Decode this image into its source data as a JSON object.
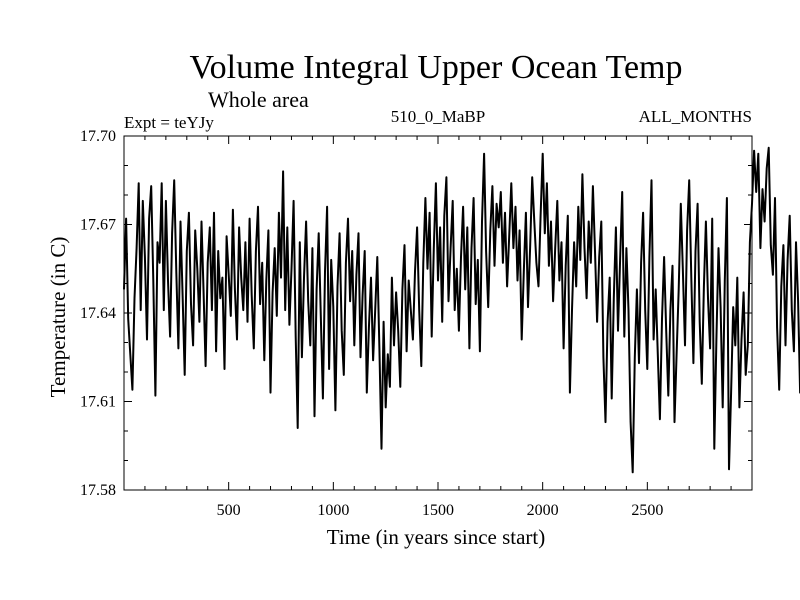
{
  "chart_data": {
    "type": "line",
    "title": "Volume Integral Upper Ocean Temp",
    "subtitle": "Whole area",
    "expt_label": "Expt = teYJy",
    "period_label": "510_0_MaBP",
    "months_label": "ALL_MONTHS",
    "xlabel": "Time (in years since start)",
    "ylabel": "Temperature (in C)",
    "xlim": [
      0,
      3000
    ],
    "ylim": [
      17.58,
      17.7
    ],
    "xticks": [
      500,
      1000,
      1500,
      2000,
      2500
    ],
    "xtick_labels": [
      "500",
      "1000",
      "1500",
      "2000",
      "2500"
    ],
    "yticks": [
      17.58,
      17.61,
      17.64,
      17.67,
      17.7
    ],
    "ytick_labels": [
      "17.58",
      "17.61",
      "17.64",
      "17.67",
      "17.70"
    ],
    "series": [
      {
        "name": "Volume integral upper ocean temperature",
        "color": "#000000",
        "x_start": 0,
        "x_step": 10,
        "values": [
          17.648,
          17.672,
          17.638,
          17.626,
          17.614,
          17.645,
          17.662,
          17.684,
          17.641,
          17.678,
          17.659,
          17.631,
          17.672,
          17.683,
          17.651,
          17.612,
          17.664,
          17.657,
          17.684,
          17.641,
          17.678,
          17.651,
          17.632,
          17.667,
          17.685,
          17.654,
          17.628,
          17.671,
          17.646,
          17.619,
          17.661,
          17.674,
          17.643,
          17.629,
          17.668,
          17.655,
          17.637,
          17.671,
          17.648,
          17.622,
          17.657,
          17.669,
          17.641,
          17.674,
          17.627,
          17.661,
          17.645,
          17.652,
          17.621,
          17.666,
          17.653,
          17.639,
          17.675,
          17.648,
          17.631,
          17.669,
          17.652,
          17.641,
          17.664,
          17.637,
          17.672,
          17.646,
          17.628,
          17.661,
          17.676,
          17.643,
          17.657,
          17.624,
          17.651,
          17.668,
          17.613,
          17.647,
          17.662,
          17.639,
          17.674,
          17.652,
          17.688,
          17.641,
          17.669,
          17.636,
          17.655,
          17.678,
          17.632,
          17.601,
          17.664,
          17.625,
          17.652,
          17.671,
          17.644,
          17.629,
          17.662,
          17.605,
          17.648,
          17.667,
          17.639,
          17.611,
          17.654,
          17.676,
          17.621,
          17.658,
          17.642,
          17.607,
          17.649,
          17.667,
          17.634,
          17.619,
          17.657,
          17.672,
          17.644,
          17.661,
          17.629,
          17.653,
          17.667,
          17.625,
          17.646,
          17.661,
          17.613,
          17.635,
          17.652,
          17.624,
          17.641,
          17.659,
          17.628,
          17.594,
          17.637,
          17.608,
          17.626,
          17.615,
          17.652,
          17.629,
          17.647,
          17.634,
          17.615,
          17.648,
          17.663,
          17.627,
          17.651,
          17.641,
          17.631,
          17.654,
          17.669,
          17.641,
          17.622,
          17.657,
          17.679,
          17.655,
          17.674,
          17.632,
          17.662,
          17.684,
          17.651,
          17.669,
          17.637,
          17.673,
          17.686,
          17.644,
          17.662,
          17.678,
          17.641,
          17.655,
          17.634,
          17.659,
          17.676,
          17.648,
          17.669,
          17.628,
          17.662,
          17.679,
          17.643,
          17.658,
          17.627,
          17.671,
          17.694,
          17.661,
          17.642,
          17.668,
          17.683,
          17.656,
          17.677,
          17.669,
          17.681,
          17.657,
          17.674,
          17.649,
          17.666,
          17.684,
          17.662,
          17.676,
          17.651,
          17.668,
          17.631,
          17.654,
          17.674,
          17.642,
          17.662,
          17.686,
          17.671,
          17.657,
          17.649,
          17.673,
          17.694,
          17.667,
          17.684,
          17.656,
          17.671,
          17.644,
          17.662,
          17.678,
          17.651,
          17.664,
          17.628,
          17.656,
          17.673,
          17.613,
          17.641,
          17.664,
          17.649,
          17.676,
          17.658,
          17.687,
          17.662,
          17.645,
          17.671,
          17.657,
          17.683,
          17.661,
          17.637,
          17.659,
          17.671,
          17.625,
          17.603,
          17.637,
          17.652,
          17.611,
          17.645,
          17.669,
          17.634,
          17.658,
          17.681,
          17.632,
          17.662,
          17.641,
          17.603,
          17.586,
          17.625,
          17.648,
          17.623,
          17.657,
          17.674,
          17.641,
          17.621,
          17.659,
          17.685,
          17.631,
          17.648,
          17.626,
          17.604,
          17.638,
          17.659,
          17.634,
          17.612,
          17.641,
          17.656,
          17.603,
          17.626,
          17.648,
          17.677,
          17.654,
          17.629,
          17.668,
          17.685,
          17.652,
          17.623,
          17.661,
          17.677,
          17.637,
          17.616,
          17.649,
          17.671,
          17.645,
          17.628,
          17.672,
          17.594,
          17.631,
          17.662,
          17.642,
          17.608,
          17.651,
          17.679,
          17.587,
          17.613,
          17.642,
          17.629,
          17.652,
          17.608,
          17.631,
          17.647,
          17.619,
          17.629,
          17.664,
          17.677,
          17.695,
          17.681,
          17.694,
          17.662,
          17.682,
          17.671,
          17.689,
          17.696,
          17.663,
          17.653,
          17.679,
          17.635,
          17.614,
          17.649,
          17.663,
          17.629,
          17.658,
          17.673,
          17.641,
          17.627,
          17.664,
          17.644,
          17.613,
          17.658,
          17.676,
          17.582,
          17.622,
          17.649,
          17.634,
          17.653,
          17.619,
          17.638,
          17.651,
          17.628,
          17.615,
          17.642,
          17.661,
          17.634,
          17.647,
          17.623,
          17.659,
          17.676,
          17.641,
          17.628,
          17.651,
          17.667,
          17.639,
          17.618,
          17.647,
          17.656,
          17.625,
          17.648,
          17.632,
          17.614,
          17.643,
          17.659,
          17.633,
          17.668,
          17.646,
          17.628,
          17.652,
          17.615,
          17.634,
          17.658,
          17.634,
          17.607,
          17.594,
          17.612,
          17.637,
          17.606,
          17.597,
          17.622,
          17.608,
          17.629,
          17.642,
          17.613,
          17.636,
          17.605,
          17.627,
          17.652,
          17.619,
          17.634,
          17.662,
          17.642,
          17.659,
          17.627,
          17.648,
          17.671,
          17.639,
          17.623,
          17.654,
          17.641,
          17.659,
          17.612,
          17.645,
          17.667,
          17.635,
          17.649,
          17.667,
          17.681,
          17.671,
          17.659,
          17.676,
          17.693,
          17.668,
          17.684,
          17.671,
          17.692,
          17.673,
          17.655,
          17.678,
          17.662,
          17.681,
          17.657,
          17.674,
          17.651,
          17.666,
          17.679,
          17.652,
          17.671,
          17.654,
          17.637,
          17.664,
          17.681,
          17.648,
          17.671,
          17.689,
          17.662,
          17.645,
          17.674,
          17.692,
          17.663,
          17.679,
          17.652,
          17.671,
          17.681,
          17.661,
          17.676,
          17.648,
          17.669,
          17.634,
          17.658,
          17.611,
          17.603,
          17.628,
          17.605,
          17.648,
          17.612,
          17.634,
          17.654,
          17.651,
          17.641,
          17.657,
          17.648
        ]
      }
    ]
  }
}
